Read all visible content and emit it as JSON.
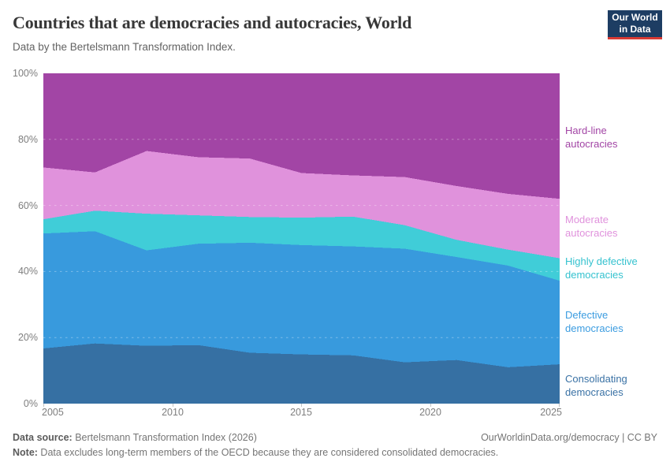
{
  "header": {
    "title": "Countries that are democracies and autocracies, World",
    "subtitle": "Data by the Bertelsmann Transformation Index.",
    "logo": {
      "line1": "Our World",
      "line2": "in Data",
      "bg_color": "#1d3d63",
      "accent_color": "#d93a34"
    }
  },
  "chart_data": {
    "type": "area",
    "stacked": true,
    "unit": "% of countries",
    "title": "Countries that are democracies and autocracies, World",
    "x": [
      2005,
      2007,
      2009,
      2011,
      2013,
      2015,
      2017,
      2019,
      2021,
      2023,
      2025
    ],
    "xlim": [
      2005,
      2025
    ],
    "ylim": [
      0,
      100
    ],
    "xticks": [
      "2005",
      "2010",
      "2015",
      "2020",
      "2025"
    ],
    "xtick_years": [
      2005,
      2010,
      2015,
      2020,
      2025
    ],
    "yticks": [
      "0%",
      "20%",
      "40%",
      "60%",
      "80%",
      "100%"
    ],
    "grid": "dashed horizontal lines every 20%",
    "legend_position": "right",
    "series": [
      {
        "name": "Consolidating democracies",
        "color": "#3670a3",
        "values": [
          16.7,
          18.2,
          17.5,
          17.7,
          15.4,
          14.9,
          14.6,
          12.5,
          13.2,
          11.0,
          11.9
        ]
      },
      {
        "name": "Defective democracies",
        "color": "#389add",
        "values": [
          34.8,
          34.0,
          28.9,
          30.7,
          33.3,
          33.1,
          33.0,
          34.4,
          31.2,
          30.8,
          25.3
        ]
      },
      {
        "name": "Highly defective democracies",
        "color": "#40cdd8",
        "values": [
          4.3,
          6.2,
          11.1,
          8.6,
          7.8,
          8.3,
          9.0,
          7.1,
          5.2,
          4.8,
          6.8
        ]
      },
      {
        "name": "Moderate autocracies",
        "color": "#e092dc",
        "values": [
          15.7,
          11.6,
          19.0,
          17.6,
          17.7,
          13.5,
          12.5,
          14.6,
          16.3,
          16.9,
          18.0
        ]
      },
      {
        "name": "Hard-line autocracies",
        "color": "#a245a5",
        "values": [
          28.5,
          30.0,
          23.5,
          25.4,
          25.8,
          30.2,
          30.9,
          31.4,
          34.1,
          36.5,
          38.0
        ]
      }
    ]
  },
  "legend": {
    "items": [
      {
        "label": "Hard-line autocracies",
        "color": "#a245a5"
      },
      {
        "label": "Moderate autocracies",
        "color": "#e092dc"
      },
      {
        "label": "Highly defective democracies",
        "color": "#35c2cf"
      },
      {
        "label": "Defective democracies",
        "color": "#3b9ce0"
      },
      {
        "label": "Consolidating democracies",
        "color": "#3a72a5"
      }
    ]
  },
  "footer": {
    "source_label": "Data source:",
    "source_text": " Bertelsmann Transformation Index (2026)",
    "attribution": "OurWorldinData.org/democracy | CC BY",
    "note_label": "Note:",
    "note_text": " Data excludes long-term members of the OECD because they are considered consolidated democracies."
  }
}
